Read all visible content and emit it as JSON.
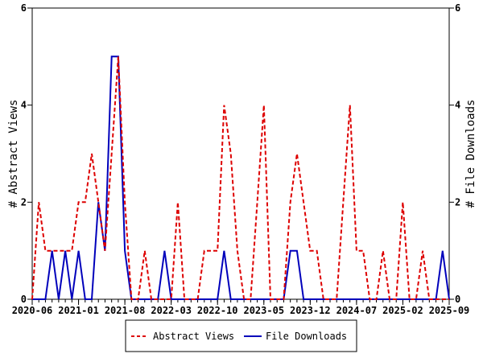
{
  "chart_data": {
    "type": "line",
    "x_tick_labels": [
      "2020-06",
      "2021-01",
      "2021-08",
      "2022-03",
      "2022-10",
      "2023-05",
      "2023-12",
      "2024-07",
      "2025-02",
      "2025-09"
    ],
    "x_range": [
      "2020-06",
      "2025-09"
    ],
    "x_step": "month",
    "ylabel_left": "# Abstract Views",
    "ylabel_right": "# File Downloads",
    "ylim": [
      0,
      6
    ],
    "y_ticks": [
      0,
      2,
      4,
      6
    ],
    "grid": false,
    "legend_position": "bottom",
    "series": [
      {
        "name": "Abstract Views",
        "color": "#dd0000",
        "style": "dashed",
        "axis": "left",
        "values": [
          0,
          2,
          1,
          1,
          1,
          1,
          1,
          2,
          2,
          3,
          2,
          1,
          3,
          5,
          2,
          0,
          0,
          1,
          0,
          0,
          0,
          0,
          2,
          0,
          0,
          0,
          1,
          1,
          1,
          4,
          3,
          1,
          0,
          0,
          2,
          4,
          0,
          0,
          0,
          2,
          3,
          2,
          1,
          1,
          0,
          0,
          0,
          2,
          4,
          1,
          1,
          0,
          0,
          1,
          0,
          0,
          2,
          0,
          0,
          1,
          0,
          0,
          0,
          0
        ]
      },
      {
        "name": "File Downloads",
        "color": "#0000bb",
        "style": "solid",
        "axis": "right",
        "values": [
          0,
          0,
          0,
          1,
          0,
          1,
          0,
          1,
          0,
          0,
          2,
          1,
          5,
          5,
          1,
          0,
          0,
          0,
          0,
          0,
          1,
          0,
          0,
          0,
          0,
          0,
          0,
          0,
          0,
          1,
          0,
          0,
          0,
          0,
          0,
          0,
          0,
          0,
          0,
          1,
          1,
          0,
          0,
          0,
          0,
          0,
          0,
          0,
          0,
          0,
          0,
          0,
          0,
          0,
          0,
          0,
          0,
          0,
          0,
          0,
          0,
          0,
          1,
          0
        ]
      }
    ]
  }
}
